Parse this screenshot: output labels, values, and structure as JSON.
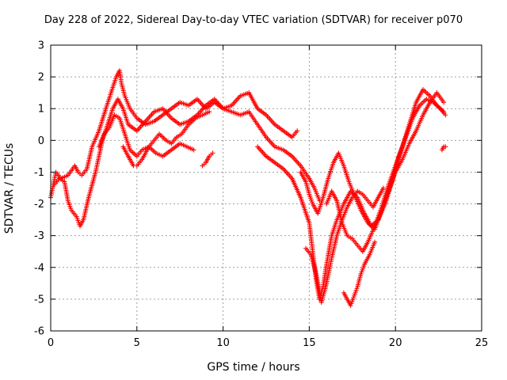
{
  "chart_data": {
    "type": "scatter",
    "title": "Day 228 of 2022, Sidereal Day-to-day VTEC variation (SDTVAR) for receiver p070",
    "xlabel": "GPS time / hours",
    "ylabel": "SDTVAR / TECUs",
    "xlim": [
      0,
      25
    ],
    "ylim": [
      -6,
      3
    ],
    "xticks": [
      0,
      5,
      10,
      15,
      20,
      25
    ],
    "yticks": [
      -6,
      -5,
      -4,
      -3,
      -2,
      -1,
      0,
      1,
      2,
      3
    ],
    "grid": true,
    "marker": "+",
    "color": "#ff0000",
    "series": [
      {
        "name": "track-1",
        "x": [
          0,
          0.3,
          0.6,
          1.0,
          1.4,
          1.6,
          1.8,
          2.1,
          2.4,
          2.8,
          3.2,
          3.5,
          3.8,
          4.0,
          4.1,
          4.3,
          4.6,
          5.0,
          5.5,
          6.0,
          6.5,
          7.0,
          7.5,
          8.0,
          8.5,
          9.0,
          9.5,
          10.0,
          10.5,
          11.0,
          11.5,
          12.0,
          12.5,
          13.0,
          13.5,
          14.0,
          14.3
        ],
        "y": [
          -1.8,
          -1.0,
          -1.2,
          -1.1,
          -0.8,
          -1.0,
          -1.1,
          -0.9,
          -0.2,
          0.3,
          1.0,
          1.5,
          2.0,
          2.2,
          1.8,
          1.4,
          1.0,
          0.7,
          0.5,
          0.6,
          0.8,
          1.0,
          1.2,
          1.1,
          1.3,
          1.0,
          1.2,
          1.0,
          1.1,
          1.4,
          1.5,
          1.0,
          0.8,
          0.5,
          0.3,
          0.1,
          0.3
        ]
      },
      {
        "name": "track-2",
        "x": [
          0.2,
          0.5,
          0.8,
          1.0,
          1.2,
          1.5,
          1.7,
          1.9,
          2.2,
          2.6,
          3.0,
          3.3,
          3.6,
          3.9,
          4.2,
          4.5,
          5.0,
          5.5,
          6.0,
          6.5,
          7.0,
          7.5,
          8.0,
          8.5,
          9.0,
          9.5,
          10.0,
          10.5,
          11.0,
          11.5,
          12.0,
          12.5,
          13.0,
          13.5,
          14.0,
          14.5,
          15.0,
          15.3,
          15.6
        ],
        "y": [
          -1.4,
          -1.2,
          -1.3,
          -1.9,
          -2.2,
          -2.4,
          -2.7,
          -2.5,
          -1.8,
          -1.0,
          0.0,
          0.5,
          1.0,
          1.3,
          1.0,
          0.5,
          0.3,
          0.6,
          0.9,
          1.0,
          0.7,
          0.5,
          0.6,
          0.8,
          1.1,
          1.3,
          1.0,
          0.9,
          0.8,
          0.9,
          0.5,
          0.1,
          -0.2,
          -0.3,
          -0.5,
          -0.8,
          -1.2,
          -1.5,
          -1.9
        ]
      },
      {
        "name": "track-3",
        "x": [
          2.8,
          3.1,
          3.4,
          3.7,
          4.0,
          4.3,
          4.6,
          5.0,
          5.3,
          5.7,
          6.1,
          6.5,
          7.0,
          7.5,
          7.9,
          8.3
        ],
        "y": [
          -0.2,
          0.2,
          0.4,
          0.8,
          0.7,
          0.2,
          -0.3,
          -0.5,
          -0.3,
          -0.2,
          -0.4,
          -0.5,
          -0.3,
          -0.1,
          -0.2,
          -0.3
        ]
      },
      {
        "name": "track-4",
        "x": [
          4.2,
          4.5,
          4.8,
          5.0,
          5.3,
          5.7,
          6.0,
          6.3,
          6.7,
          7.0,
          7.3,
          7.6,
          8.0,
          8.4,
          8.8,
          9.2
        ],
        "y": [
          -0.2,
          -0.5,
          -0.8,
          -0.8,
          -0.6,
          -0.2,
          0.0,
          0.2,
          0.0,
          -0.1,
          0.1,
          0.2,
          0.5,
          0.7,
          0.8,
          0.9
        ]
      },
      {
        "name": "track-5",
        "x": [
          8.8,
          9.0,
          9.2,
          9.4
        ],
        "y": [
          -0.8,
          -0.7,
          -0.5,
          -0.4
        ]
      },
      {
        "name": "track-6",
        "x": [
          12.0,
          12.5,
          13.0,
          13.5,
          14.0,
          14.5,
          15.0,
          15.2,
          15.4,
          15.6,
          15.8,
          16.0,
          16.3,
          16.6,
          17.0,
          17.4,
          17.8,
          18.2,
          18.6,
          19.0,
          19.4,
          19.8,
          20.2,
          20.6,
          21.0,
          21.4,
          21.8,
          22.2,
          22.6,
          22.9
        ],
        "y": [
          -0.2,
          -0.5,
          -0.7,
          -0.9,
          -1.2,
          -1.8,
          -2.6,
          -3.5,
          -4.4,
          -5.0,
          -4.6,
          -3.9,
          -3.0,
          -2.5,
          -2.0,
          -1.6,
          -1.8,
          -2.3,
          -2.7,
          -2.5,
          -2.0,
          -1.3,
          -0.5,
          0.1,
          0.7,
          1.1,
          1.3,
          1.2,
          1.0,
          0.8
        ]
      },
      {
        "name": "track-7",
        "x": [
          14.5,
          14.8,
          15.0,
          15.2,
          15.5,
          15.8,
          16.1,
          16.4,
          16.7,
          17.0,
          17.3,
          17.6,
          18.0,
          18.4,
          18.8,
          19.2,
          19.6,
          20.0,
          20.4,
          20.8,
          21.2,
          21.6,
          22.0,
          22.4,
          22.8
        ],
        "y": [
          -1.0,
          -1.3,
          -1.7,
          -2.0,
          -2.3,
          -1.8,
          -1.2,
          -0.7,
          -0.4,
          -0.8,
          -1.3,
          -1.7,
          -2.2,
          -2.6,
          -2.8,
          -2.2,
          -1.6,
          -1.0,
          -0.6,
          -0.1,
          0.3,
          0.8,
          1.2,
          1.5,
          1.2
        ]
      },
      {
        "name": "track-8",
        "x": [
          14.8,
          15.1,
          15.4,
          15.7,
          16.0,
          16.3,
          16.6,
          16.9,
          17.2,
          17.5,
          17.8,
          18.1,
          18.4,
          18.7,
          19.0,
          19.3
        ],
        "y": [
          -3.4,
          -3.6,
          -4.2,
          -5.1,
          -4.5,
          -3.7,
          -3.0,
          -2.5,
          -2.1,
          -1.8,
          -1.6,
          -1.7,
          -1.9,
          -2.1,
          -1.8,
          -1.5
        ]
      },
      {
        "name": "track-9",
        "x": [
          16.0,
          16.3,
          16.6,
          16.9,
          17.2,
          17.5,
          17.8,
          18.1,
          18.4,
          18.8,
          19.2,
          19.6,
          20.0,
          20.4,
          20.8,
          21.2,
          21.6,
          22.0,
          22.4,
          22.8
        ],
        "y": [
          -2.0,
          -1.6,
          -1.9,
          -2.6,
          -3.0,
          -3.1,
          -3.3,
          -3.5,
          -3.2,
          -2.7,
          -2.1,
          -1.4,
          -0.8,
          -0.2,
          0.5,
          1.2,
          1.6,
          1.4,
          1.1,
          0.9
        ]
      },
      {
        "name": "track-10",
        "x": [
          17.0,
          17.2,
          17.4,
          17.6,
          17.8,
          18.0,
          18.2,
          18.5,
          18.8
        ],
        "y": [
          -4.8,
          -5.0,
          -5.2,
          -4.9,
          -4.6,
          -4.2,
          -3.9,
          -3.6,
          -3.2
        ]
      },
      {
        "name": "track-11",
        "x": [
          22.7,
          22.8,
          22.9
        ],
        "y": [
          -0.3,
          -0.2,
          -0.2
        ]
      }
    ]
  }
}
